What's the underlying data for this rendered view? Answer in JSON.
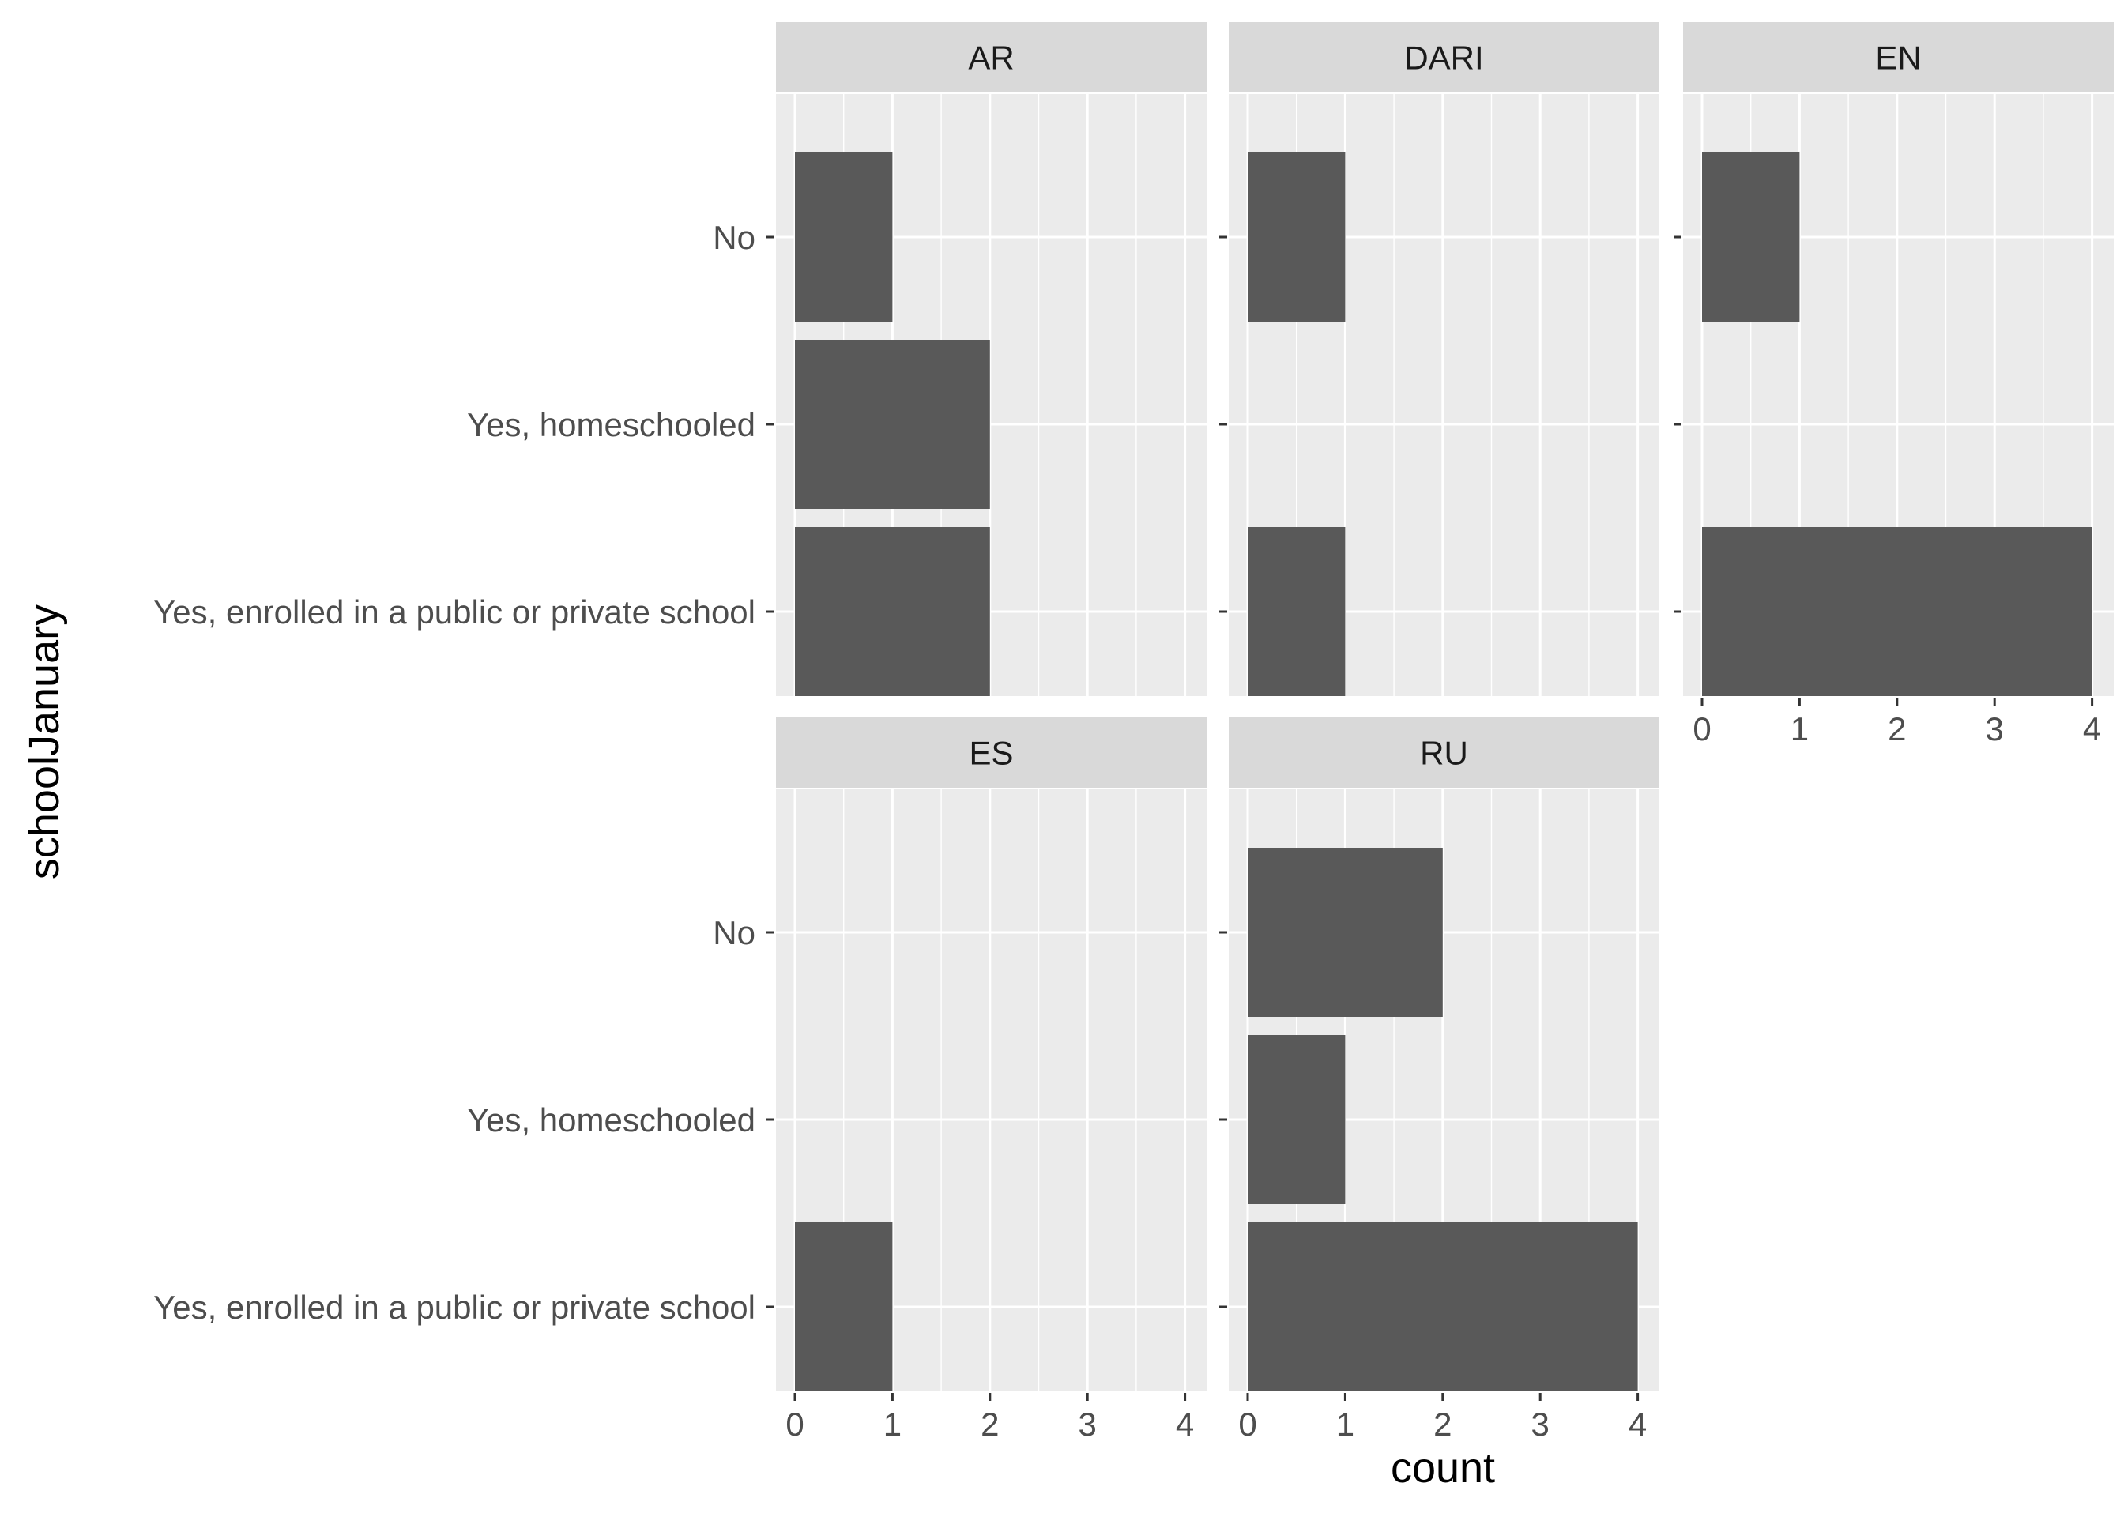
{
  "chart_data": {
    "type": "bar",
    "orientation": "horizontal",
    "facet_order": [
      "AR",
      "DARI",
      "EN",
      "ES",
      "RU"
    ],
    "categories": [
      "No",
      "Yes, homeschooled",
      "Yes, enrolled in a public or private school"
    ],
    "xlabel": "count",
    "ylabel": "schoolJanuary",
    "xlim": [
      0,
      4
    ],
    "x_ticks": [
      "0",
      "1",
      "2",
      "3",
      "4"
    ],
    "grid": true,
    "panels": [
      {
        "facet": "AR",
        "values": [
          1,
          2,
          2
        ]
      },
      {
        "facet": "DARI",
        "values": [
          1,
          0,
          1
        ]
      },
      {
        "facet": "EN",
        "values": [
          1,
          0,
          4
        ]
      },
      {
        "facet": "ES",
        "values": [
          0,
          0,
          1
        ]
      },
      {
        "facet": "RU",
        "values": [
          2,
          1,
          4
        ]
      }
    ],
    "colors": {
      "bar": "#595959",
      "panel_background": "#ebebeb",
      "strip_background": "#d9d9d9",
      "grid": "#ffffff",
      "tick": "#333333"
    }
  }
}
